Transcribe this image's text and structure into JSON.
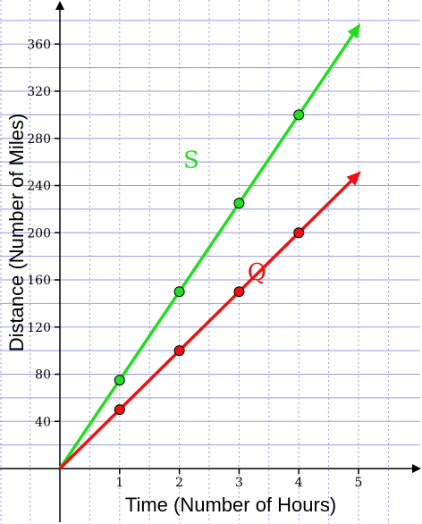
{
  "chart_data": {
    "type": "line",
    "xlabel": "Time (Number of Hours)",
    "ylabel": "Distance (Number of Miles)",
    "xlim": [
      0,
      5
    ],
    "ylim": [
      0,
      380
    ],
    "x_ticks": [
      1,
      2,
      3,
      4,
      5
    ],
    "y_ticks": [
      40,
      80,
      120,
      160,
      200,
      240,
      280,
      320,
      360
    ],
    "grid": true,
    "series": [
      {
        "name": "S",
        "color": "#22dd22",
        "x": [
          0,
          1,
          2,
          3,
          4,
          5
        ],
        "y": [
          0,
          75,
          150,
          225,
          300,
          375
        ],
        "marked_points": [
          1,
          2,
          3,
          4
        ]
      },
      {
        "name": "Q",
        "color": "#ee1111",
        "x": [
          0,
          1,
          2,
          3,
          4,
          5
        ],
        "y": [
          0,
          50,
          100,
          150,
          200,
          250
        ],
        "marked_points": [
          1,
          2,
          3,
          4
        ]
      }
    ]
  }
}
